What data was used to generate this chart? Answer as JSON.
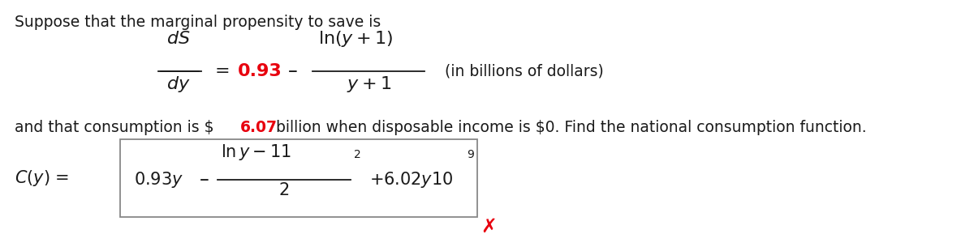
{
  "bg_color": "#ffffff",
  "text_color": "#1a1a1a",
  "red_color": "#e8000e",
  "box_edge_color": "#888888",
  "line1": "Suppose that the marginal propensity to save is",
  "in_billions": "(in billions of dollars)",
  "red_value": "6.07",
  "font_size_body": 13.5,
  "font_size_math": 15,
  "font_size_sup": 10,
  "fig_width": 12.0,
  "fig_height": 2.89,
  "dpi": 100
}
